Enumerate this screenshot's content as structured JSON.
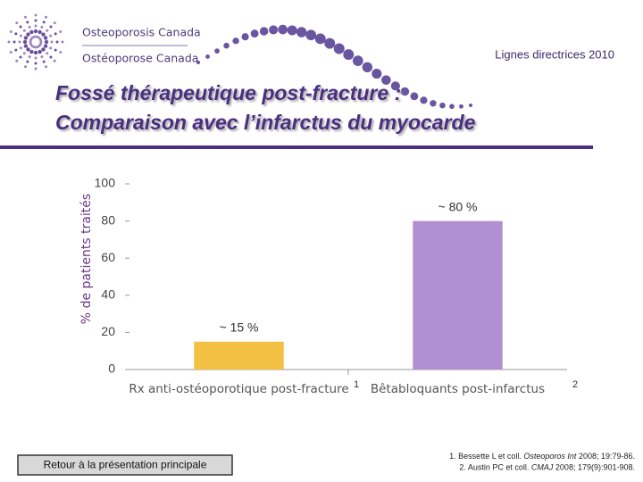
{
  "header": {
    "logo_en": "Osteoporosis Canada",
    "logo_fr": "Ostéoporose Canada",
    "tag": "Lignes directrices 2010",
    "title_lines": [
      "Fossé thérapeutique post-fracture :",
      "Comparaison avec l’infarctus du myocarde"
    ]
  },
  "chart_data": {
    "type": "bar",
    "y_label": "% de patients traités",
    "categories": [
      "Rx anti-ostéoporotique post-fracture",
      "Bêtabloquants post-infarctus"
    ],
    "category_notes": [
      "1",
      "2"
    ],
    "values": [
      15,
      80
    ],
    "value_labels": [
      "~ 15 %",
      "~ 80 %"
    ],
    "colors": [
      "#f2c043",
      "#b28fd0"
    ],
    "ylim": [
      0,
      100
    ],
    "yticks": [
      0,
      20,
      40,
      60,
      80,
      100
    ],
    "grid": false
  },
  "button": {
    "label": "Retour à la présentation principale"
  },
  "references": [
    {
      "before": "1. Bessette L et coll. ",
      "journal": "Osteoporos Int",
      "after": " 2008; 19:79-86."
    },
    {
      "before": "2. Austin PC et coll. ",
      "journal": "CMAJ",
      "after": " 2008; 179(9):901-908."
    }
  ]
}
